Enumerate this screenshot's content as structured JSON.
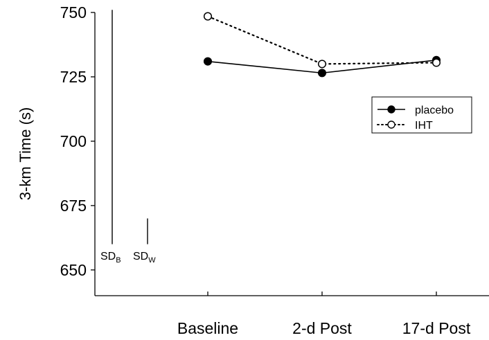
{
  "chart_data": {
    "type": "line",
    "title": "",
    "xlabel": "",
    "ylabel": "3-km Time (s)",
    "categories": [
      "Baseline",
      "2-d Post",
      "17-d Post"
    ],
    "ylim": [
      640,
      750
    ],
    "yticks": [
      650,
      675,
      700,
      725,
      750
    ],
    "legend_position": "right",
    "grid": false,
    "series": [
      {
        "name": "placebo",
        "values": [
          731,
          726.5,
          731.5
        ],
        "line_style": "solid",
        "marker": "filled-circle",
        "color": "#000000"
      },
      {
        "name": "IHT",
        "values": [
          748.5,
          730,
          730.5
        ],
        "line_style": "dotted",
        "marker": "open-circle",
        "color": "#000000"
      }
    ],
    "sd_bars": [
      {
        "label": "SD",
        "sub": "B",
        "from": 660,
        "to": 751
      },
      {
        "label": "SD",
        "sub": "W",
        "from": 660,
        "to": 670
      }
    ]
  }
}
